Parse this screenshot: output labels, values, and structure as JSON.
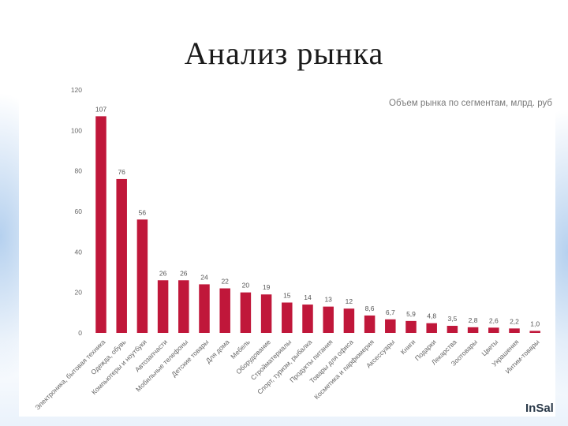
{
  "slide": {
    "title": "Анализ рынка",
    "logo_text": "InSal"
  },
  "chart_data": {
    "type": "bar",
    "title": "Объем рынка по сегментам, млрд. руб",
    "xlabel": "",
    "ylabel": "",
    "ylim": [
      0,
      120
    ],
    "yticks": [
      0,
      20,
      40,
      60,
      80,
      100,
      120
    ],
    "grid": false,
    "bar_color": "#c0173a",
    "categories": [
      "Электроника, бытовая техника",
      "Одежда, обувь",
      "Компьютеры и ноутбуки",
      "Автозапчасти",
      "Мобильные телефоны",
      "Детские товары",
      "Для дома",
      "Мебель",
      "Оборудование",
      "Стройматериалы",
      "Спорт, туризм, рыбалка",
      "Продукты питания",
      "Товары для офиса",
      "Косметика и парфюмерия",
      "Аксессуары",
      "Книги",
      "Подарки",
      "Лекарства",
      "Зоотовары",
      "Цветы",
      "Украшения",
      "Интим-товары"
    ],
    "values": [
      107,
      76,
      56,
      26,
      26,
      24,
      22,
      20,
      19,
      15,
      14,
      13,
      12,
      8.6,
      6.7,
      5.9,
      4.8,
      3.5,
      2.8,
      2.6,
      2.2,
      1.0
    ],
    "value_labels": [
      "107",
      "76",
      "56",
      "26",
      "26",
      "24",
      "22",
      "20",
      "19",
      "15",
      "14",
      "13",
      "12",
      "8,6",
      "6,7",
      "5,9",
      "4,8",
      "3,5",
      "2,8",
      "2,6",
      "2,2",
      "1,0"
    ]
  }
}
